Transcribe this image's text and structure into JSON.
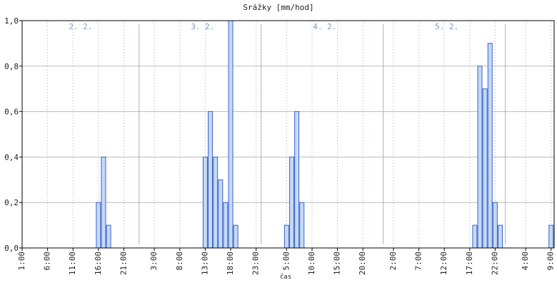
{
  "chart_data": {
    "type": "bar",
    "title": "Srážky [mm/hod]",
    "x_label": "čas",
    "x": [
      16,
      17,
      18,
      37,
      38,
      39,
      40,
      41,
      42,
      43,
      53,
      54,
      55,
      56,
      90,
      91,
      92,
      93,
      94,
      95,
      105
    ],
    "values": [
      0.2,
      0.4,
      0.1,
      0.4,
      0.6,
      0.4,
      0.3,
      0.2,
      1.0,
      0.1,
      0.1,
      0.4,
      0.6,
      0.2,
      0.1,
      0.8,
      0.7,
      0.9,
      0.2,
      0.1,
      0.1
    ],
    "color": "#c5d9f5",
    "edge_color": "#3a63c8",
    "xlim": [
      1,
      105.6
    ],
    "xticks": [
      {
        "value": 1,
        "label": "1:00"
      },
      {
        "value": 6,
        "label": "6:00"
      },
      {
        "value": 11,
        "label": "11:00"
      },
      {
        "value": 16,
        "label": "16:00"
      },
      {
        "value": 21,
        "label": "21:00"
      },
      {
        "value": 27,
        "label": "3:00"
      },
      {
        "value": 32,
        "label": "8:00"
      },
      {
        "value": 37,
        "label": "13:00"
      },
      {
        "value": 42,
        "label": "18:00"
      },
      {
        "value": 47,
        "label": "23:00"
      },
      {
        "value": 53,
        "label": "5:00"
      },
      {
        "value": 58,
        "label": "10:00"
      },
      {
        "value": 63,
        "label": "15:00"
      },
      {
        "value": 68,
        "label": "20:00"
      },
      {
        "value": 74,
        "label": "2:00"
      },
      {
        "value": 79,
        "label": "7:00"
      },
      {
        "value": 84,
        "label": "12:00"
      },
      {
        "value": 89,
        "label": "17:00"
      },
      {
        "value": 94,
        "label": "22:00"
      },
      {
        "value": 100,
        "label": "4:00"
      },
      {
        "value": 105,
        "label": "9:00"
      }
    ],
    "ylim": [
      0,
      1
    ],
    "yticks": [
      {
        "value": 0,
        "label": "0,0"
      },
      {
        "value": 0.2,
        "label": "0,2"
      },
      {
        "value": 0.4,
        "label": "0,4"
      },
      {
        "value": 0.6,
        "label": "0,6"
      },
      {
        "value": 0.8,
        "label": "0,8"
      },
      {
        "value": 1,
        "label": "1,0"
      }
    ],
    "grid": true,
    "day_lines": [
      24,
      48,
      72,
      96
    ],
    "day_labels": [
      "2. 2.",
      "3. 2.",
      "4. 2.",
      "5. 2."
    ]
  }
}
